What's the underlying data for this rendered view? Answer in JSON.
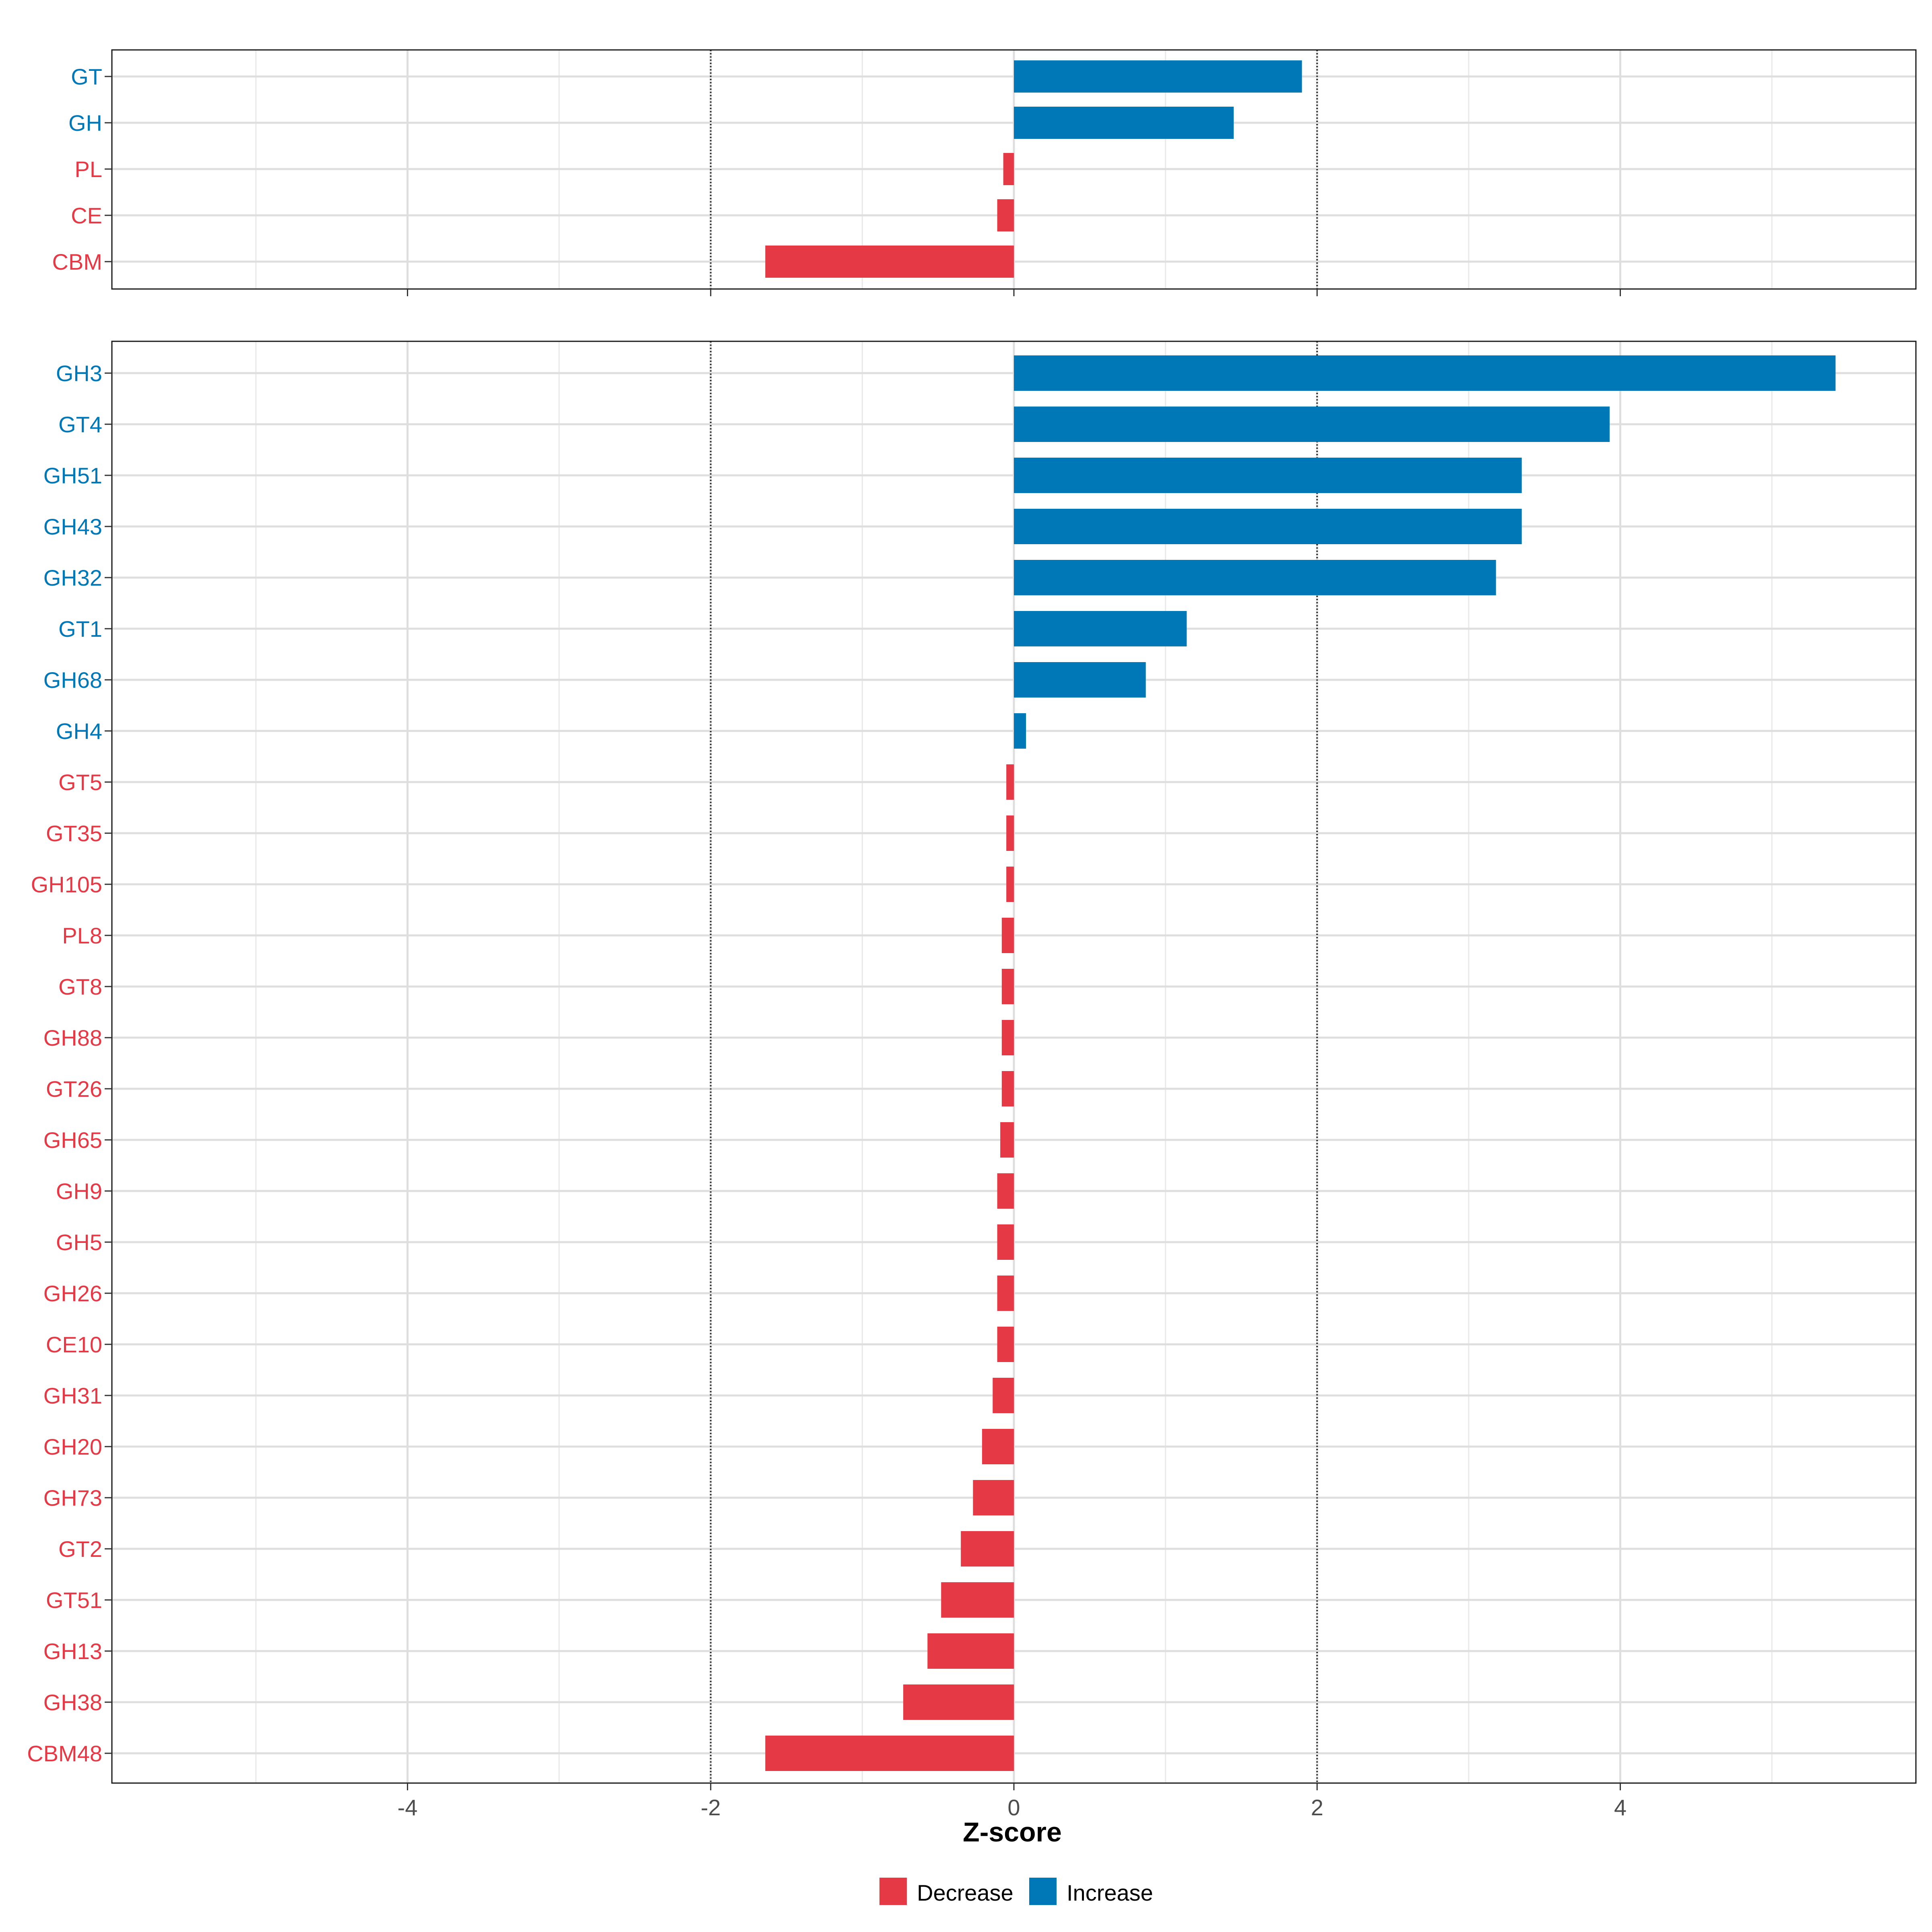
{
  "chart_data": {
    "type": "bar",
    "orientation": "horizontal",
    "xlabel": "Z-score",
    "xlim": [
      -5.95,
      5.95
    ],
    "x_ticks": [
      -4,
      -2,
      0,
      2,
      4
    ],
    "reference_lines": [
      -2,
      2
    ],
    "grid": true,
    "colors": {
      "Decrease": "#E63946",
      "Increase": "#0077B6"
    },
    "legend": {
      "position": "bottom",
      "items": [
        {
          "key": "Decrease",
          "label": "Decrease"
        },
        {
          "key": "Increase",
          "label": "Increase"
        }
      ]
    },
    "panels": [
      {
        "name": "top",
        "categories": [
          "GT",
          "GH",
          "PL",
          "CE",
          "CBM"
        ],
        "values": [
          1.9,
          1.45,
          -0.07,
          -0.11,
          -1.64
        ],
        "directions": [
          "Increase",
          "Increase",
          "Decrease",
          "Decrease",
          "Decrease"
        ]
      },
      {
        "name": "bottom",
        "categories": [
          "GH3",
          "GT4",
          "GH51",
          "GH43",
          "GH32",
          "GT1",
          "GH68",
          "GH4",
          "GT5",
          "GT35",
          "GH105",
          "PL8",
          "GT8",
          "GH88",
          "GT26",
          "GH65",
          "GH9",
          "GH5",
          "GH26",
          "CE10",
          "GH31",
          "GH20",
          "GH73",
          "GT2",
          "GT51",
          "GH13",
          "GH38",
          "CBM48"
        ],
        "values": [
          5.42,
          3.93,
          3.35,
          3.35,
          3.18,
          1.14,
          0.87,
          0.08,
          -0.05,
          -0.05,
          -0.05,
          -0.08,
          -0.08,
          -0.08,
          -0.08,
          -0.09,
          -0.11,
          -0.11,
          -0.11,
          -0.11,
          -0.14,
          -0.21,
          -0.27,
          -0.35,
          -0.48,
          -0.57,
          -0.73,
          -1.64
        ],
        "directions": [
          "Increase",
          "Increase",
          "Increase",
          "Increase",
          "Increase",
          "Increase",
          "Increase",
          "Increase",
          "Decrease",
          "Decrease",
          "Decrease",
          "Decrease",
          "Decrease",
          "Decrease",
          "Decrease",
          "Decrease",
          "Decrease",
          "Decrease",
          "Decrease",
          "Decrease",
          "Decrease",
          "Decrease",
          "Decrease",
          "Decrease",
          "Decrease",
          "Decrease",
          "Decrease",
          "Decrease"
        ]
      }
    ]
  }
}
